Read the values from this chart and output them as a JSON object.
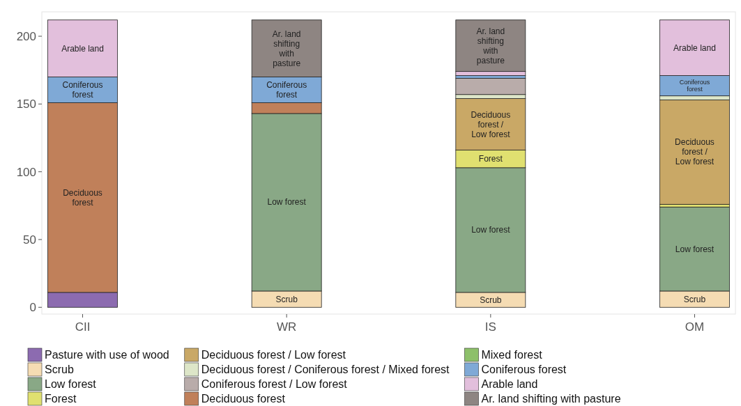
{
  "chart_data": {
    "type": "bar",
    "stacked": true,
    "categories": [
      "CII",
      "WR",
      "IS",
      "OM"
    ],
    "ylim": [
      -5,
      218
    ],
    "yticks": [
      0,
      50,
      100,
      150,
      200
    ],
    "grid": false,
    "legend": "bottom",
    "series": [
      {
        "name": "Pasture with use of wood",
        "color": "#8c6bb0",
        "values": [
          11,
          null,
          null,
          null
        ]
      },
      {
        "name": "Scrub",
        "color": "#f5dcb3",
        "values": [
          null,
          12,
          11,
          12
        ]
      },
      {
        "name": "Low forest",
        "color": "#89a886",
        "values": [
          null,
          131,
          92,
          62
        ]
      },
      {
        "name": "Forest",
        "color": "#e0e070",
        "values": [
          null,
          null,
          13,
          2
        ]
      },
      {
        "name": "Deciduous forest / Low forest",
        "color": "#c9a866",
        "values": [
          null,
          null,
          38,
          77
        ]
      },
      {
        "name": "Deciduous forest / Coniferous forest / Mixed forest",
        "color": "#dde6c8",
        "values": [
          null,
          null,
          3,
          3
        ]
      },
      {
        "name": "Coniferous forest / Low forest",
        "color": "#b9acaa",
        "values": [
          null,
          null,
          12,
          null
        ]
      },
      {
        "name": "Deciduous forest",
        "color": "#c0805a",
        "values": [
          140,
          8,
          null,
          null
        ]
      },
      {
        "name": "Mixed forest",
        "color": "#8dc06a",
        "values": [
          null,
          null,
          null,
          null
        ]
      },
      {
        "name": "Coniferous forest",
        "color": "#7fa9d6",
        "values": [
          19,
          19,
          2,
          15
        ]
      },
      {
        "name": "Arable land",
        "color": "#e2bfdc",
        "values": [
          42,
          null,
          3,
          41
        ]
      },
      {
        "name": "Ar. land shifting with pasture",
        "color": "#8e8582",
        "values": [
          null,
          42,
          38,
          null
        ]
      }
    ]
  }
}
